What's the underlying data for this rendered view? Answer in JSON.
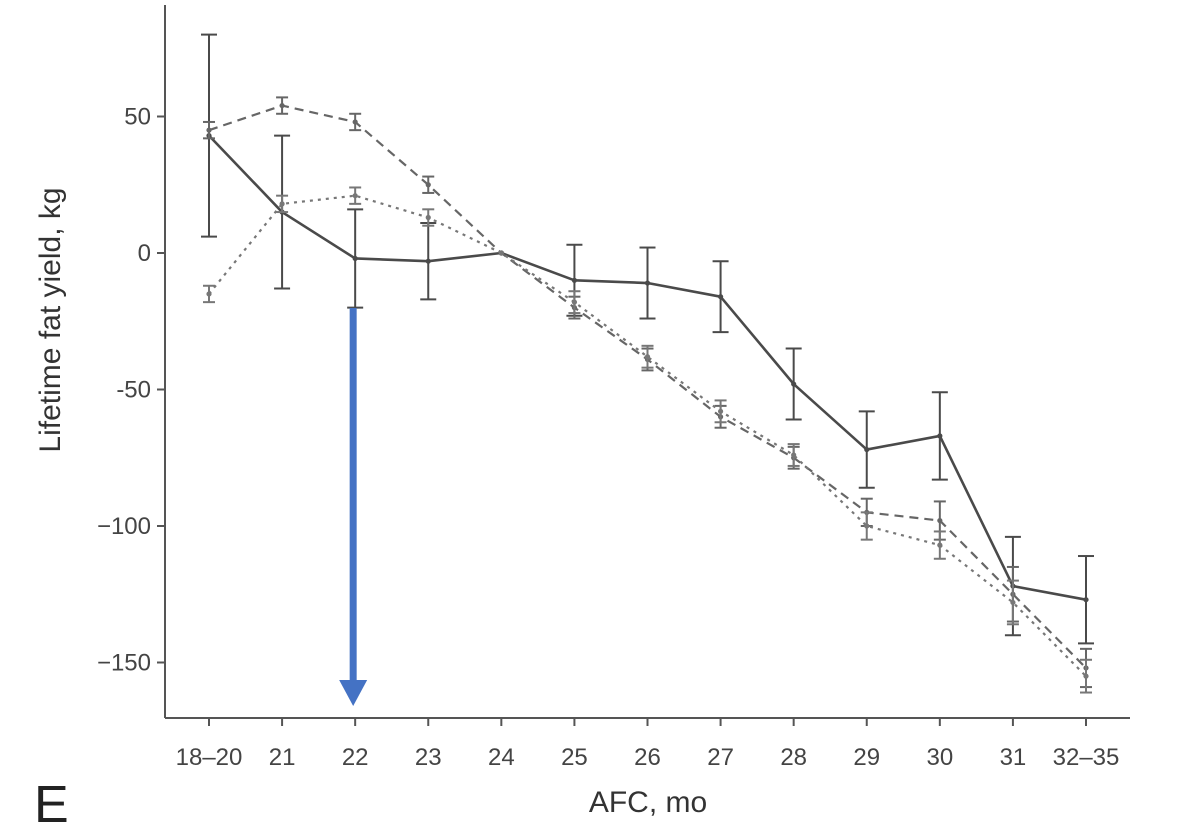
{
  "chart_data": {
    "type": "line",
    "panel_label": "E",
    "xlabel": "AFC, mo",
    "ylabel": "Lifetime fat yield, kg",
    "categories": [
      "18–20",
      "21",
      "22",
      "23",
      "24",
      "25",
      "26",
      "27",
      "28",
      "29",
      "30",
      "31",
      "32–35"
    ],
    "ylim": [
      -170,
      90
    ],
    "yticks": [
      50,
      0,
      -50,
      -100,
      -150
    ],
    "ytick_labels": [
      "50",
      "0",
      "-50",
      "−100",
      "−150"
    ],
    "grid": false,
    "legend": "none",
    "series": [
      {
        "style": "solid",
        "values": [
          43,
          15,
          -2,
          -3,
          0,
          -10,
          -11,
          -16,
          -48,
          -72,
          -67,
          -122,
          -127
        ],
        "error": [
          37,
          28,
          18,
          14,
          0,
          13,
          13,
          13,
          13,
          14,
          16,
          18,
          16
        ]
      },
      {
        "style": "dashed",
        "values": [
          45,
          54,
          48,
          25,
          0,
          -20,
          -39,
          -60,
          -75,
          -95,
          -98,
          -125,
          -152
        ],
        "error": [
          3,
          3,
          3,
          3,
          0,
          4,
          4,
          4,
          4,
          5,
          7,
          10,
          7
        ]
      },
      {
        "style": "dotted",
        "values": [
          -15,
          18,
          21,
          13,
          0,
          -18,
          -38,
          -58,
          -74,
          -100,
          -107,
          -128,
          -155
        ],
        "error": [
          3,
          3,
          3,
          3,
          0,
          4,
          4,
          4,
          4,
          5,
          5,
          8,
          6
        ]
      }
    ],
    "annotation": {
      "type": "arrow",
      "color": "#4472C4",
      "x": "22"
    }
  }
}
